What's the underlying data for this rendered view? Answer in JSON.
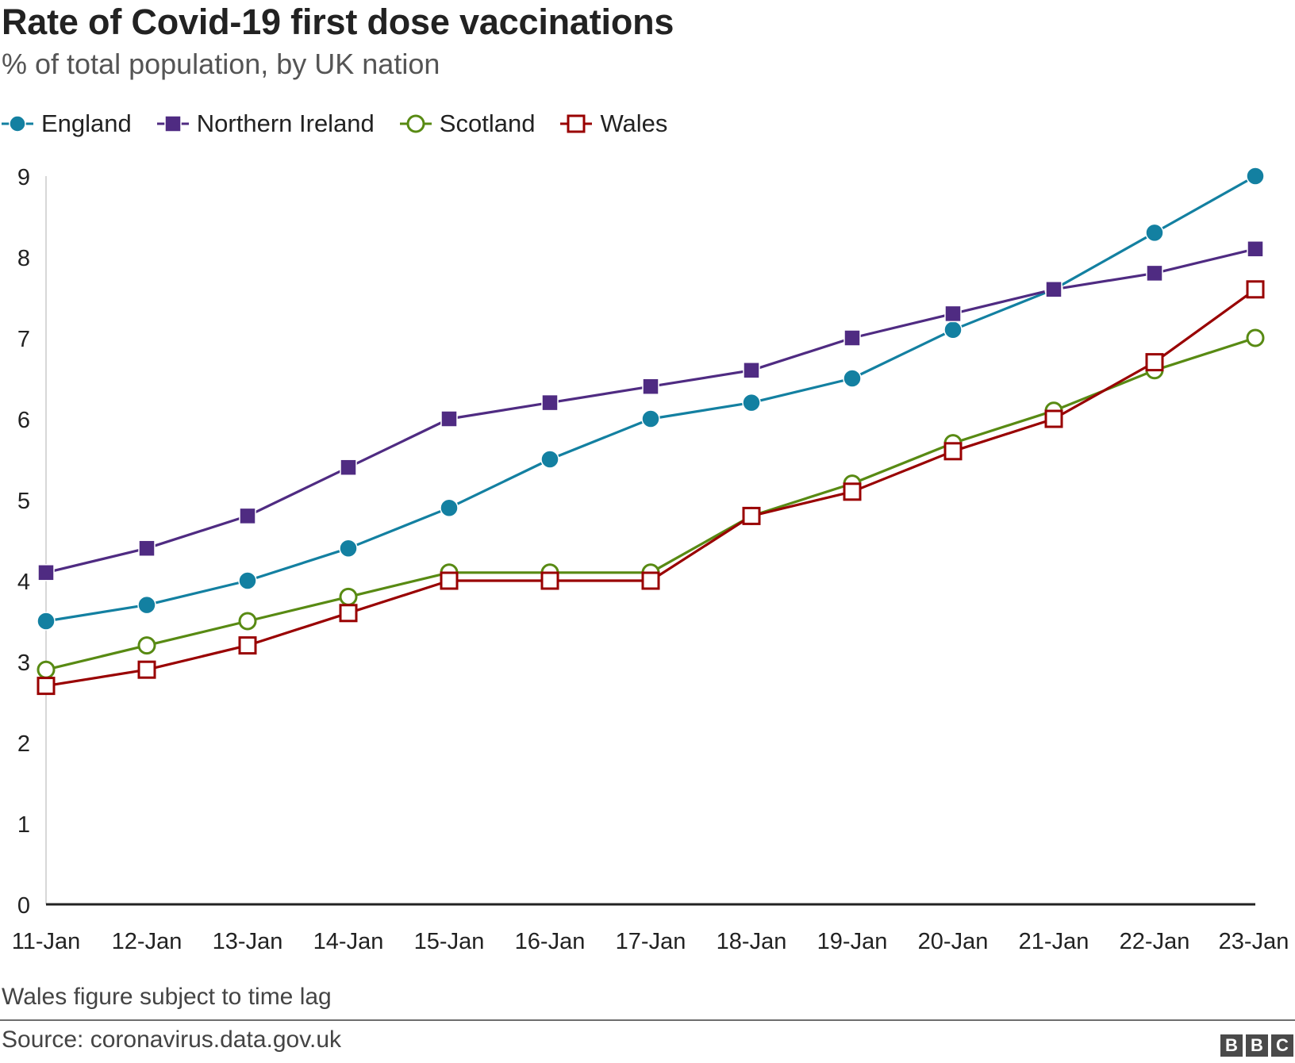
{
  "header": {
    "title": "Rate of Covid-19 first dose vaccinations",
    "subtitle": "% of total population, by UK nation"
  },
  "footer": {
    "note": "Wales figure subject to time lag",
    "source": "Source: coronavirus.data.gov.uk",
    "logo_letters": [
      "B",
      "B",
      "C"
    ]
  },
  "chart_data": {
    "type": "line",
    "title": "Rate of Covid-19 first dose vaccinations",
    "subtitle": "% of total population, by UK nation",
    "xlabel": "",
    "ylabel": "",
    "ylim": [
      0,
      9
    ],
    "yticks": [
      0,
      1,
      2,
      3,
      4,
      5,
      6,
      7,
      8,
      9
    ],
    "grid": false,
    "legend_position": "top-left",
    "categories": [
      "11-Jan",
      "12-Jan",
      "13-Jan",
      "14-Jan",
      "15-Jan",
      "16-Jan",
      "17-Jan",
      "18-Jan",
      "19-Jan",
      "20-Jan",
      "21-Jan",
      "22-Jan",
      "23-Jan"
    ],
    "series": [
      {
        "name": "England",
        "color": "#1380A1",
        "marker": "circle-filled",
        "values": [
          3.5,
          3.7,
          4.0,
          4.4,
          4.9,
          5.5,
          6.0,
          6.2,
          6.5,
          7.1,
          7.6,
          8.3,
          9.0
        ]
      },
      {
        "name": "Northern Ireland",
        "color": "#4F2B82",
        "marker": "square-filled",
        "values": [
          4.1,
          4.4,
          4.8,
          5.4,
          6.0,
          6.2,
          6.4,
          6.6,
          7.0,
          7.3,
          7.6,
          7.8,
          8.1
        ]
      },
      {
        "name": "Scotland",
        "color": "#588A13",
        "marker": "circle-open",
        "values": [
          2.9,
          3.2,
          3.5,
          3.8,
          4.1,
          4.1,
          4.1,
          4.8,
          5.2,
          5.7,
          6.1,
          6.6,
          7.0
        ]
      },
      {
        "name": "Wales",
        "color": "#990000",
        "marker": "square-open",
        "values": [
          2.7,
          2.9,
          3.2,
          3.6,
          4.0,
          4.0,
          4.0,
          4.8,
          5.1,
          5.6,
          6.0,
          6.7,
          7.6
        ]
      }
    ]
  }
}
